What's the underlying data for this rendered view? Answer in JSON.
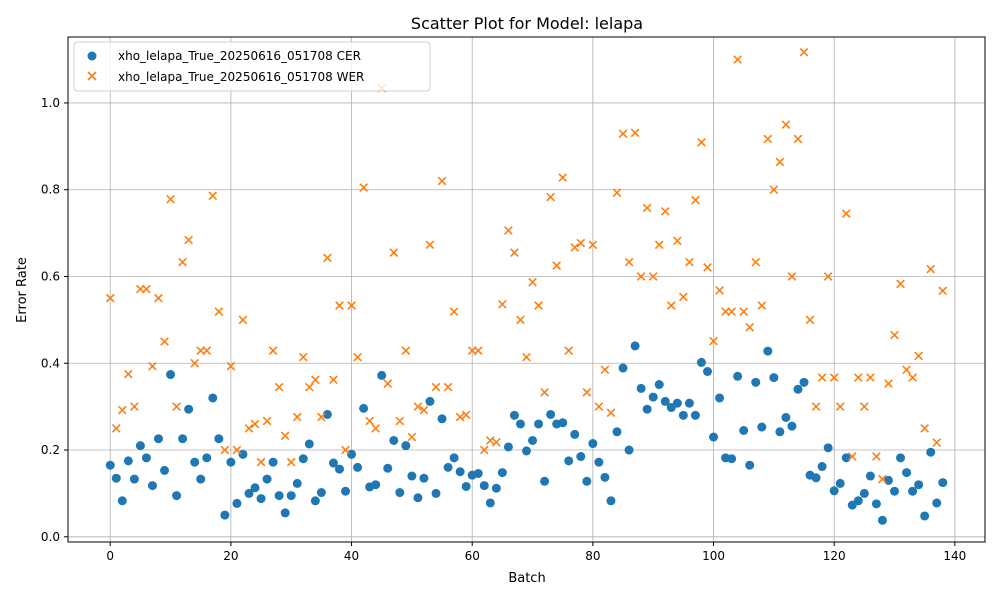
{
  "chart_data": {
    "type": "scatter",
    "title": "Scatter Plot for Model: lelapa",
    "xlabel": "Batch",
    "ylabel": "Error Rate",
    "xlim": [
      -7,
      145
    ],
    "ylim": [
      -0.012,
      1.152
    ],
    "xticks": [
      0,
      20,
      40,
      60,
      80,
      100,
      120,
      140
    ],
    "yticks": [
      0.0,
      0.2,
      0.4,
      0.6,
      0.8,
      1.0
    ],
    "ytick_labels": [
      "0.0",
      "0.2",
      "0.4",
      "0.6",
      "0.8",
      "1.0"
    ],
    "grid": true,
    "legend_position": "top-left",
    "series": [
      {
        "name": "xho_lelapa_True_20250616_051708 CER",
        "marker": "circle",
        "color": "#1f77b4",
        "x": [
          0,
          1,
          2,
          3,
          4,
          5,
          6,
          7,
          8,
          9,
          10,
          11,
          12,
          13,
          14,
          15,
          16,
          17,
          18,
          19,
          20,
          21,
          22,
          23,
          24,
          25,
          26,
          27,
          28,
          29,
          30,
          31,
          32,
          33,
          34,
          35,
          36,
          37,
          38,
          39,
          40,
          41,
          42,
          43,
          44,
          45,
          46,
          47,
          48,
          49,
          50,
          51,
          52,
          53,
          54,
          55,
          56,
          57,
          58,
          59,
          60,
          61,
          62,
          63,
          64,
          65,
          66,
          67,
          68,
          69,
          70,
          71,
          72,
          73,
          74,
          75,
          76,
          77,
          78,
          79,
          80,
          81,
          82,
          83,
          84,
          85,
          86,
          87,
          88,
          89,
          90,
          91,
          92,
          93,
          94,
          95,
          96,
          97,
          98,
          99,
          100,
          101,
          102,
          103,
          104,
          105,
          106,
          107,
          108,
          109,
          110,
          111,
          112,
          113,
          114,
          115,
          116,
          117,
          118,
          119,
          120,
          121,
          122,
          123,
          124,
          125,
          126,
          127,
          128,
          129,
          130,
          131,
          132,
          133,
          134,
          135,
          136,
          137,
          138
        ],
        "y": [
          0.165,
          0.135,
          0.083,
          0.175,
          0.133,
          0.21,
          0.182,
          0.118,
          0.226,
          0.153,
          0.374,
          0.095,
          0.226,
          0.294,
          0.172,
          0.133,
          0.182,
          0.32,
          0.226,
          0.05,
          0.172,
          0.077,
          0.19,
          0.1,
          0.113,
          0.088,
          0.133,
          0.172,
          0.095,
          0.055,
          0.095,
          0.123,
          0.18,
          0.214,
          0.083,
          0.102,
          0.282,
          0.17,
          0.156,
          0.105,
          0.19,
          0.16,
          0.296,
          0.115,
          0.12,
          0.372,
          0.158,
          0.222,
          0.102,
          0.21,
          0.14,
          0.09,
          0.135,
          0.312,
          0.1,
          0.272,
          0.16,
          0.182,
          0.15,
          0.116,
          0.142,
          0.146,
          0.118,
          0.078,
          0.112,
          0.148,
          0.207,
          0.28,
          0.26,
          0.198,
          0.222,
          0.26,
          0.128,
          0.282,
          0.26,
          0.263,
          0.175,
          0.236,
          0.185,
          0.128,
          0.215,
          0.172,
          0.137,
          0.083,
          0.242,
          0.389,
          0.2,
          0.44,
          0.342,
          0.294,
          0.322,
          0.351,
          0.312,
          0.298,
          0.308,
          0.28,
          0.308,
          0.28,
          0.402,
          0.381,
          0.23,
          0.32,
          0.182,
          0.18,
          0.37,
          0.245,
          0.165,
          0.356,
          0.253,
          0.428,
          0.367,
          0.242,
          0.275,
          0.255,
          0.34,
          0.356,
          0.142,
          0.136,
          0.162,
          0.205,
          0.106,
          0.123,
          0.182,
          0.073,
          0.083,
          0.1,
          0.14,
          0.076,
          0.038,
          0.13,
          0.105,
          0.182,
          0.148,
          0.105,
          0.12,
          0.048,
          0.195,
          0.078,
          0.125
        ]
      },
      {
        "name": "xho_lelapa_True_20250616_051708 WER",
        "marker": "x",
        "color": "#ff7f0e",
        "x": [
          0,
          1,
          2,
          3,
          4,
          5,
          6,
          7,
          8,
          9,
          10,
          11,
          12,
          13,
          14,
          15,
          16,
          17,
          18,
          19,
          20,
          21,
          22,
          23,
          24,
          25,
          26,
          27,
          28,
          29,
          30,
          31,
          32,
          33,
          34,
          35,
          36,
          37,
          38,
          39,
          40,
          41,
          42,
          43,
          44,
          45,
          46,
          47,
          48,
          49,
          50,
          51,
          52,
          53,
          54,
          55,
          56,
          57,
          58,
          59,
          60,
          61,
          62,
          63,
          64,
          65,
          66,
          67,
          68,
          69,
          70,
          71,
          72,
          73,
          74,
          75,
          76,
          77,
          78,
          79,
          80,
          81,
          82,
          83,
          84,
          85,
          86,
          87,
          88,
          89,
          90,
          91,
          92,
          93,
          94,
          95,
          96,
          97,
          98,
          99,
          100,
          101,
          102,
          103,
          104,
          105,
          106,
          107,
          108,
          109,
          110,
          111,
          112,
          113,
          114,
          115,
          116,
          117,
          118,
          119,
          120,
          121,
          122,
          123,
          124,
          125,
          126,
          127,
          128,
          129,
          130,
          131,
          132,
          133,
          134,
          135,
          136,
          137,
          138
        ],
        "y": [
          0.55,
          0.25,
          0.292,
          0.375,
          0.3,
          0.571,
          0.571,
          0.393,
          0.55,
          0.45,
          0.778,
          0.3,
          0.633,
          0.684,
          0.4,
          0.429,
          0.429,
          0.786,
          0.519,
          0.2,
          0.393,
          0.2,
          0.5,
          0.25,
          0.26,
          0.172,
          0.267,
          0.429,
          0.345,
          0.233,
          0.172,
          0.276,
          0.414,
          0.345,
          0.362,
          0.276,
          0.643,
          0.362,
          0.533,
          0.2,
          0.533,
          0.414,
          0.805,
          0.267,
          0.25,
          1.034,
          0.353,
          0.655,
          0.267,
          0.429,
          0.23,
          0.3,
          0.292,
          0.673,
          0.345,
          0.82,
          0.345,
          0.519,
          0.276,
          0.281,
          0.429,
          0.429,
          0.2,
          0.222,
          0.218,
          0.536,
          0.706,
          0.655,
          0.5,
          0.414,
          0.587,
          0.533,
          0.333,
          0.783,
          0.625,
          0.828,
          0.429,
          0.667,
          0.677,
          0.333,
          0.673,
          0.3,
          0.385,
          0.286,
          0.793,
          0.929,
          0.633,
          0.931,
          0.6,
          0.758,
          0.6,
          0.673,
          0.75,
          0.533,
          0.682,
          0.553,
          0.633,
          0.776,
          0.909,
          0.621,
          0.451,
          0.568,
          0.519,
          0.519,
          1.1,
          0.519,
          0.483,
          0.633,
          0.533,
          0.917,
          0.8,
          0.864,
          0.95,
          0.6,
          0.917,
          1.117,
          0.5,
          0.3,
          0.367,
          0.6,
          0.367,
          0.3,
          0.745,
          0.185,
          0.367,
          0.3,
          0.367,
          0.185,
          0.133,
          0.353,
          0.465,
          0.583,
          0.385,
          0.367,
          0.417,
          0.25,
          0.617,
          0.217,
          0.567
        ]
      }
    ]
  }
}
